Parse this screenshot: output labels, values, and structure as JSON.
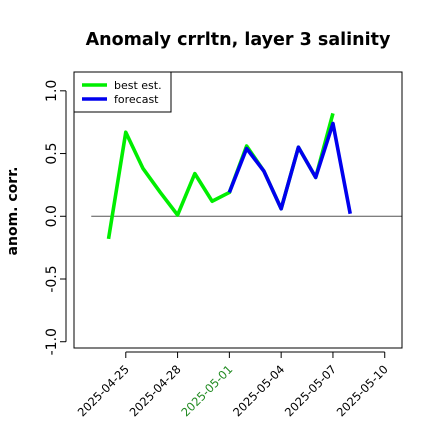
{
  "chart_data": {
    "type": "line",
    "title": "Anomaly crrltn, layer 3 salinity",
    "ylabel": "anom. corr.",
    "xlabel": "",
    "ylim": [
      -1.05,
      1.15
    ],
    "x_domain": [
      "2025-04-22",
      "2025-05-11"
    ],
    "yticks": [
      -1.0,
      -0.5,
      0.0,
      0.5,
      1.0
    ],
    "ytick_labels": [
      "-1.0",
      "-0.5",
      "0.0",
      "0.5",
      "1.0"
    ],
    "xticks": [
      "2025-04-25",
      "2025-04-28",
      "2025-05-01",
      "2025-05-04",
      "2025-05-07",
      "2025-05-10"
    ],
    "xtick_labels": [
      "2025-04-25",
      "2025-04-28",
      "2025-05-01",
      "2025-05-04",
      "2025-05-07",
      "2025-05-10"
    ],
    "xtick_colors": [
      "#000000",
      "#000000",
      "#228B22",
      "#000000",
      "#000000",
      "#000000"
    ],
    "reference_line": 0.0,
    "legend_position": "top-left",
    "grid": false,
    "series": [
      {
        "name": "best est.",
        "color": "#00ee00",
        "x": [
          "2025-04-24",
          "2025-04-25",
          "2025-04-26",
          "2025-04-27",
          "2025-04-28",
          "2025-04-29",
          "2025-04-30",
          "2025-05-01",
          "2025-05-02",
          "2025-05-03",
          "2025-05-04",
          "2025-05-05",
          "2025-05-06",
          "2025-05-07"
        ],
        "values": [
          -0.18,
          0.67,
          0.38,
          0.19,
          0.01,
          0.34,
          0.12,
          0.19,
          0.56,
          0.36,
          0.06,
          0.55,
          0.31,
          0.82
        ]
      },
      {
        "name": "forecast",
        "color": "#0000ee",
        "x": [
          "2025-05-01",
          "2025-05-02",
          "2025-05-03",
          "2025-05-04",
          "2025-05-05",
          "2025-05-06",
          "2025-05-07",
          "2025-05-08"
        ],
        "values": [
          0.19,
          0.54,
          0.36,
          0.06,
          0.55,
          0.31,
          0.74,
          0.02
        ]
      }
    ]
  }
}
